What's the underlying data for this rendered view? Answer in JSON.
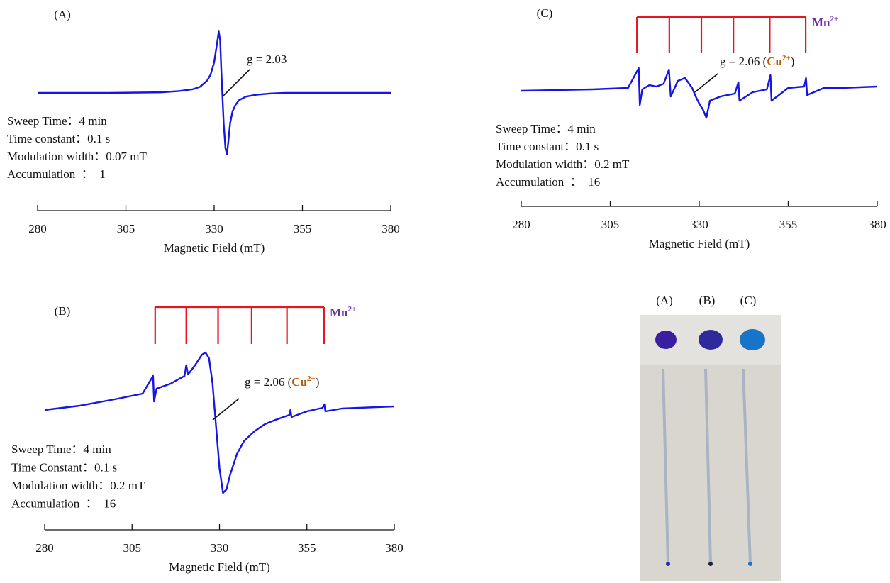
{
  "chart_data": [
    {
      "type": "line",
      "panel_label": "(A)",
      "x_label": "Magnetic Field (mT)",
      "xlim": [
        280,
        380
      ],
      "xticks": [
        280,
        305,
        330,
        355,
        380
      ],
      "ylim": [
        -1.2,
        1.2
      ],
      "series": [
        {
          "color": "#1515e6",
          "x": [
            280,
            300,
            315,
            320,
            324,
            326,
            328,
            329,
            330,
            330.8,
            331.3,
            331.7,
            332,
            332.3,
            332.7,
            333.2,
            333.6,
            334,
            334.5,
            335.2,
            336,
            337,
            339,
            342,
            346,
            350,
            380
          ],
          "values": [
            0,
            0,
            0.01,
            0.03,
            0.06,
            0.1,
            0.2,
            0.3,
            0.5,
            0.8,
            1.0,
            0.85,
            0.4,
            0,
            -0.5,
            -0.9,
            -1.0,
            -0.8,
            -0.5,
            -0.3,
            -0.2,
            -0.12,
            -0.06,
            -0.03,
            -0.01,
            0,
            0
          ]
        }
      ],
      "g_label": "g = 2.03",
      "parameters": [
        "Sweep Time：4 min",
        "Time constant：0.1 s",
        "Modulation width：0.07 mT",
        "Accumulation  ：  1"
      ]
    },
    {
      "type": "line",
      "panel_label": "(B)",
      "x_label": "Magnetic Field (mT)",
      "xlim": [
        280,
        380
      ],
      "xticks": [
        280,
        305,
        330,
        355,
        380
      ],
      "ylim": [
        -1.6,
        1.6
      ],
      "series": [
        {
          "color": "#1515e6",
          "x": [
            280,
            290,
            300,
            308,
            311,
            311.3,
            312,
            316,
            320,
            320.5,
            321,
            323,
            325,
            326,
            327,
            328,
            329,
            330,
            331,
            332,
            333,
            335,
            337,
            340,
            343,
            346,
            350,
            350.3,
            350.6,
            355,
            359.5,
            360,
            360.3,
            365,
            370,
            380
          ],
          "values": [
            -0.18,
            -0.12,
            -0.03,
            0.05,
            0.3,
            -0.06,
            0.12,
            0.19,
            0.3,
            0.45,
            0.32,
            0.45,
            0.6,
            0.63,
            0.55,
            0.2,
            -0.4,
            -1.0,
            -1.35,
            -1.3,
            -1.1,
            -0.8,
            -0.62,
            -0.48,
            -0.38,
            -0.32,
            -0.25,
            -0.18,
            -0.28,
            -0.2,
            -0.15,
            -0.1,
            -0.2,
            -0.16,
            -0.15,
            -0.13
          ]
        }
      ],
      "mn_lines": {
        "color": "#e8141e",
        "positions": [
          311.6,
          320.5,
          329.6,
          339.2,
          349.3,
          359.9
        ]
      },
      "mn_label": "Mn",
      "mn_charge": "2+",
      "mn_label_color": "#7030a0",
      "g_label": "g = 2.06 (",
      "ion": "Cu",
      "ion_charge": "2+",
      "g_label_end": ")",
      "ion_color": "#b35a00",
      "parameters": [
        "Sweep Time：4 min",
        "Time Constant：0.1 s",
        "Modulation width：0.2 mT",
        "Accumulation  ：  16"
      ]
    },
    {
      "type": "line",
      "panel_label": "(C)",
      "x_label": "Magnetic Field (mT)",
      "xlim": [
        280,
        380
      ],
      "xticks": [
        280,
        305,
        330,
        355,
        380
      ],
      "ylim": [
        -2.5,
        2.5
      ],
      "series": [
        {
          "color": "#1515e6",
          "x": [
            280,
            300,
            310,
            313,
            313.3,
            314,
            316,
            318,
            320,
            321.5,
            322,
            324,
            326,
            328,
            329,
            330,
            331,
            332,
            333,
            336,
            340,
            341,
            341.3,
            345,
            349,
            350,
            350.3,
            355,
            359.5,
            360,
            360.3,
            365,
            370,
            380
          ],
          "values": [
            0.1,
            0.2,
            0.3,
            1.7,
            -0.9,
            0.2,
            0.5,
            0.4,
            0.6,
            1.6,
            -0.3,
            0.8,
            1.0,
            0.3,
            -0.3,
            -0.8,
            -1.2,
            -1.8,
            -0.6,
            -0.3,
            -0.1,
            0.7,
            -0.6,
            0,
            0.2,
            1.2,
            -0.6,
            0.3,
            0.4,
            1.0,
            -0.2,
            0.3,
            0.3,
            0.4
          ]
        }
      ],
      "mn_lines": {
        "color": "#e8141e",
        "positions": [
          312.5,
          321.6,
          330.6,
          339.6,
          349.8,
          359.9
        ]
      },
      "mn_label": "Mn",
      "mn_charge": "2+",
      "mn_label_color": "#7030a0",
      "g_label": "g = 2.06 (",
      "ion": "Cu",
      "ion_charge": "2+",
      "g_label_end": ")",
      "ion_color": "#b35a00",
      "parameters": [
        "Sweep Time：4 min",
        "Time constant：0.1 s",
        "Modulation width：0.2 mT",
        "Accumulation  ：  16"
      ]
    }
  ],
  "photo": {
    "labels": [
      "(A)",
      "(B)",
      "(C)"
    ]
  }
}
